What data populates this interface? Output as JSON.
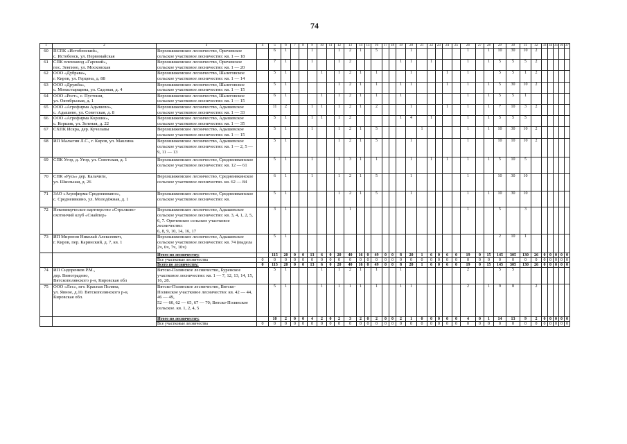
{
  "page_number": "74",
  "header_columns": [
    "1",
    "2",
    "3",
    "4",
    "5",
    "6",
    "7",
    "8",
    "9",
    "10",
    "11",
    "12",
    "13",
    "14",
    "15",
    "16",
    "17",
    "18",
    "19",
    "20",
    "21",
    "22",
    "23",
    "24",
    "25",
    "26",
    "27",
    "28",
    "29",
    "30",
    "31",
    "32",
    "33",
    "34",
    "35",
    "36",
    "37"
  ],
  "groups": [
    {
      "rows": [
        {
          "num": "60",
          "org": "ПСПК «Истобенский»,\nс. Истобенск, ул. Первомайская",
          "forestry": "Верхошижемское лесничество, Оричевское\nсельское участковое лесничество: кв. 1 — 18",
          "c": {
            "5": "6",
            "6": "1",
            "9": "1",
            "12": "1",
            "13": "2",
            "14": "1",
            "16": "5",
            "20": "1",
            "26": "1",
            "28": "1",
            "29": "10",
            "30": "30",
            "31": "10",
            "32": "2"
          }
        },
        {
          "num": "61",
          "org": "СПК племзавод «Гарский»,\nпос. Зенгино, ул. Московская",
          "forestry": "Верхошижемское лесничество, Оричевское\nсельское участковое лесничество: кв. 1 — 20",
          "c": {
            "5": "7",
            "6": "1",
            "9": "1",
            "12": "1",
            "13": "2",
            "19": "1",
            "20": "1",
            "22": "1",
            "26": "1",
            "28": "1",
            "29": "5",
            "30": "5",
            "31": "5",
            "32": "2"
          }
        },
        {
          "num": "62",
          "org": "ООО «Дубрава»,\nг. Киров, ул. Герцена, д. 88",
          "forestry": "Верхошижемское лесничество, Шалеговское\nсельское участковое лесничество: кв. 1 — 14",
          "c": {
            "5": "5",
            "6": "1",
            "10": "1",
            "12": "1",
            "13": "2",
            "14": "1",
            "16": "1",
            "20": "1",
            "24": "1",
            "26": "1",
            "29": "5",
            "30": "5",
            "31": "1",
            "32": "2"
          }
        },
        {
          "num": "63",
          "org": "ООО «Дружба»,\nс. Монастырщина, ул. Садовая, д. 4",
          "forestry": "Верхошижемское лесничество, Шалеговское\nсельское участковое лесничество: кв. 1 — 15",
          "c": {
            "5": "5",
            "6": "1",
            "12": "1",
            "13": "2",
            "14": "1",
            "16": "1",
            "19": "1",
            "20": "1",
            "24": "1",
            "26": "1",
            "28": "1",
            "29": "5",
            "30": "30",
            "31": "10",
            "32": "2"
          }
        },
        {
          "num": "64",
          "org": "ООО «Рост», с. Пустоши,\nул. Октябрьская, д. 1",
          "forestry": "Верхошижемское лесничество, Шалеговское\nсельское участковое лесничество: кв. 1 — 15",
          "c": {
            "5": "6",
            "6": "1",
            "10": "1",
            "12": "1",
            "13": "2",
            "14": "1",
            "16": "1",
            "19": "1",
            "26": "1",
            "28": "1",
            "29": "5",
            "30": "5",
            "31": "1"
          }
        },
        {
          "num": "65",
          "org": "ООО «Агрофирма Адышево»,\nс. Адышево, ул. Советская, д. 8",
          "forestry": "Верхошижемское лесничество, Адышевское\nсельское участковое лесничество: кв. 1 — 33",
          "c": {
            "5": "11",
            "6": "2",
            "9": "1",
            "10": "1",
            "12": "1",
            "13": "2",
            "14": "1",
            "16": "2",
            "20": "1",
            "24": "1",
            "26": "1",
            "28": "1",
            "29": "7",
            "30": "10",
            "31": "3",
            "32": "2"
          }
        },
        {
          "num": "66",
          "org": "ООО «Агрофирма Коршик»,\nс. Коршик, ул. Зеленая, д. 22",
          "forestry": "Верхошижемское лесничество, Адышевское\nсельское участковое лесничество: кв. 1 — 35",
          "c": {
            "5": "5",
            "6": "1",
            "9": "1",
            "10": "1",
            "12": "1",
            "13": "2",
            "19": "1",
            "20": "4",
            "22": "1",
            "26": "1",
            "28": "1",
            "29": "5",
            "30": "5",
            "31": "5"
          }
        },
        {
          "num": "67",
          "org": "СХПК Искра, дер. Кучелапы",
          "forestry": "Верхошижемское лесничество, Адышевское\nсельское участковое лесничество: кв. 1 — 15",
          "c": {
            "5": "5",
            "6": "1",
            "9": "1",
            "12": "1",
            "13": "2",
            "14": "1",
            "16": "5",
            "21": "1",
            "26": "1",
            "28": "1",
            "29": "10",
            "30": "30",
            "31": "10",
            "32": "2"
          }
        },
        {
          "num": "68",
          "org": "ИП Малыгин Л.С., г. Киров, ул. Маклина",
          "forestry": "Верхошижемское лесничество, Адышевское\nсельское участковое лесничество: кв. 1 — 2, 5 —\n9, 11 — 13",
          "c": {
            "5": "5",
            "6": "1",
            "12": "1",
            "13": "2",
            "14": "1",
            "16": "5",
            "20": "1",
            "26": "1",
            "29": "10",
            "30": "10",
            "31": "10",
            "32": "2"
          }
        },
        {
          "num": "69",
          "org": "СПК Угор, д. Угор, ул. Советская, д. 1",
          "forestry": "Верхошижемское лесничество, Среднеивкинское\nсельское участковое лесничество: кв. 12 — 61",
          "c": {
            "5": "5",
            "6": "1",
            "9": "1",
            "12": "1",
            "13": "3",
            "14": "1",
            "16": "1",
            "20": "1",
            "22": "1",
            "24": "1",
            "26": "1",
            "28": "1",
            "29": "5",
            "30": "10",
            "31": "5"
          }
        },
        {
          "num": "70",
          "org": "СПК «Русь» дер. Калачиги,\nул. Школьная, д. 26",
          "forestry": "Верхошижемское лесничество, Среднеивкинское\nсельское участковое лесничество. кв. 62 — 84",
          "c": {
            "5": "6",
            "6": "1",
            "9": "1",
            "12": "1",
            "13": "2",
            "14": "1",
            "16": "5",
            "20": "1",
            "26": "1",
            "29": "10",
            "30": "30",
            "31": "10"
          }
        },
        {
          "num": "71",
          "org": "ЗАО «Агрофирма Среднеивкино»,\nс. Среднеивкино, ул. Молодёжная, д. 1",
          "forestry": "Верхошижемское лесничество, Среднеивкинское\nсельское участковое лесничество: кв.",
          "c": {
            "5": "5",
            "6": "1",
            "12": "1",
            "13": "2",
            "14": "1",
            "16": "5",
            "20": "1",
            "26": "1",
            "28": "1",
            "29": "10",
            "30": "30",
            "31": "10"
          }
        },
        {
          "num": "72",
          "org": "Некоммерческое партнерство «Стрелково-\nохотничий клуб «Снайпер»",
          "forestry": "Верхошижемское лесничество, Адышевское\nсельское участковое лесничество: кв. 3, 4, 1, 2, 5,\n6, 7. Оричевское сельское участковое лесничество:\n6, 8, 9, 10, 14, 16, 17",
          "c": {
            "5": "3",
            "6": "1",
            "13": "1",
            "26": "1",
            "29": "5",
            "31": "3"
          }
        },
        {
          "num": "73",
          "org": "ИП Миронов Николай Алексеевич,\nг. Киров, пер. Каринский, д. 7, кв. 1",
          "forestry": "Верхошижемское лесничество, Адышевское\nсельское участковое лесничество: кв. 74 (выдела\n2ч, 6ч, 7ч, 10ч)",
          "c": {
            "5": "5",
            "6": "1",
            "29": "2",
            "30": "10",
            "31": "1"
          }
        }
      ],
      "totals": [
        {
          "label": "Итого по лесничеству:",
          "bold": true,
          "vals": [
            "",
            "115",
            "20",
            "0",
            "0",
            "13",
            "6",
            "0",
            "20",
            "40",
            "16",
            "0",
            "49",
            "0",
            "0",
            "8",
            "20",
            "1",
            "6",
            "0",
            "6",
            "0",
            "19",
            "0",
            "15",
            "145",
            "305",
            "130",
            "26",
            "0",
            "0",
            "0",
            "0",
            "0"
          ]
        },
        {
          "label": "Все участковые лесничества",
          "bold": false,
          "vals": [
            "0",
            "0",
            "0",
            "0",
            "0",
            "0",
            "0",
            "0",
            "0",
            "0",
            "0",
            "0",
            "0",
            "0",
            "0",
            "0",
            "0",
            "0",
            "0",
            "0",
            "0",
            "0",
            "0",
            "0",
            "0",
            "0",
            "0",
            "0",
            "0",
            "0",
            "0",
            "0",
            "0",
            "0"
          ]
        },
        {
          "label": "Всего по лесничеству:",
          "bold": true,
          "vals": [
            "0",
            "115",
            "20",
            "0",
            "0",
            "13",
            "6",
            "0",
            "20",
            "40",
            "16",
            "0",
            "49",
            "0",
            "0",
            "8",
            "20",
            "1",
            "6",
            "0",
            "6",
            "0",
            "19",
            "0",
            "15",
            "145",
            "305",
            "130",
            "26",
            "0",
            "0",
            "0",
            "0",
            "0"
          ]
        }
      ]
    },
    {
      "rows": [
        {
          "num": "74",
          "org": "ИП Сидоренков Р.М.,\nдер. Виноградово,\nВятскополянского р-н, Кировская обл",
          "forestry": "Вятско-Полянское лесничество, Буренское\nучастковое лесничество: кв. 1 — 7, 12, 13, 14, 15,\n16, 28.",
          "c": {
            "5": "5",
            "6": "1",
            "10": "1",
            "12": "1",
            "13": "2",
            "14": "1",
            "16": "1",
            "19": "1",
            "26": "2",
            "29": "5",
            "30": "5"
          }
        },
        {
          "num": "75",
          "org": "ООО «Лес», пгт. Красная Поляна,\nул. Явное, д.10. Вятскополянского р-н,\nКировская обл.",
          "forestry": "Вятско-Полянское лесничество, Вятско-\nПолянское участковое лесничество: кв. 42 — 44,\n46 — 49,\n52 — 60, 62 — 65, 67 — 70; Вятско-Полянское\nсельское. кв. 1, 2, 4, 5",
          "c": {
            "5": "5",
            "6": "1",
            "10": "1",
            "12": "1",
            "13": "1",
            "14": "1",
            "16": "1",
            "19": "1",
            "20": "1",
            "26": "2",
            "28": "1",
            "29": "9",
            "30": "8",
            "32": "2"
          }
        }
      ],
      "totals": [
        {
          "label": "Итого по лесничеству:",
          "bold": true,
          "vals": [
            "",
            "10",
            "2",
            "0",
            "0",
            "4",
            "2",
            "0",
            "2",
            "3",
            "2",
            "0",
            "2",
            "0",
            "0",
            "2",
            "1",
            "0",
            "0",
            "0",
            "0",
            "0",
            "4",
            "0",
            "1",
            "14",
            "13",
            "9",
            "2",
            "0",
            "0",
            "0",
            "0",
            "0"
          ]
        },
        {
          "label": "Все участковые лесничества",
          "bold": false,
          "vals": [
            "0",
            "0",
            "0",
            "0",
            "0",
            "0",
            "0",
            "0",
            "0",
            "0",
            "0",
            "0",
            "0",
            "0",
            "0",
            "0",
            "0",
            "0",
            "0",
            "0",
            "0",
            "0",
            "0",
            "0",
            "0",
            "0",
            "0",
            "0",
            "0",
            "0",
            "0",
            "0",
            "0",
            "0"
          ]
        }
      ]
    }
  ]
}
